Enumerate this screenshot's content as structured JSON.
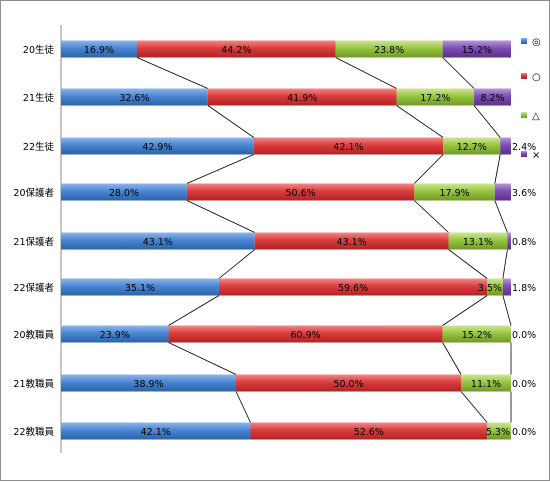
{
  "chart_data": {
    "type": "bar",
    "orientation": "horizontal",
    "stacked": "percent",
    "categories": [
      "20生徒",
      "21生徒",
      "22生徒",
      "20保護者",
      "21保護者",
      "22保護者",
      "20教職員",
      "21教職員",
      "22教職員"
    ],
    "series": [
      {
        "name": "◎",
        "color": "#3b78c6",
        "values": [
          16.9,
          32.6,
          42.9,
          28.0,
          43.1,
          35.1,
          23.9,
          38.9,
          42.1
        ]
      },
      {
        "name": "○",
        "color": "#d93a3a",
        "values": [
          44.2,
          41.9,
          42.1,
          50.6,
          43.1,
          59.6,
          60.9,
          50.0,
          52.6
        ]
      },
      {
        "name": "△",
        "color": "#93c13e",
        "values": [
          23.8,
          17.2,
          12.7,
          17.9,
          13.1,
          3.5,
          15.2,
          11.1,
          5.3
        ]
      },
      {
        "name": "×",
        "color": "#7d4ab0",
        "values": [
          15.2,
          8.2,
          2.4,
          3.6,
          0.8,
          1.8,
          0.0,
          0.0,
          0.0
        ]
      }
    ],
    "value_labels": [
      [
        "16.9%",
        "44.2%",
        "23.8%",
        "15.2%"
      ],
      [
        "32.6%",
        "41.9%",
        "17.2%",
        "8.2%"
      ],
      [
        "42.9%",
        "42.1%",
        "12.7%",
        "2.4%"
      ],
      [
        "28.0%",
        "50.6%",
        "17.9%",
        "3.6%"
      ],
      [
        "43.1%",
        "43.1%",
        "13.1%",
        "0.8%"
      ],
      [
        "35.1%",
        "59.6%",
        "3.5%",
        "1.8%"
      ],
      [
        "23.9%",
        "60.9%",
        "15.2%",
        "0.0%"
      ],
      [
        "38.9%",
        "50.0%",
        "11.1%",
        "0.0%"
      ],
      [
        "42.1%",
        "52.6%",
        "5.3%",
        "0.0%"
      ]
    ],
    "series_lines": true,
    "legend_position": "right",
    "title": "",
    "xlabel": "",
    "ylabel": ""
  }
}
